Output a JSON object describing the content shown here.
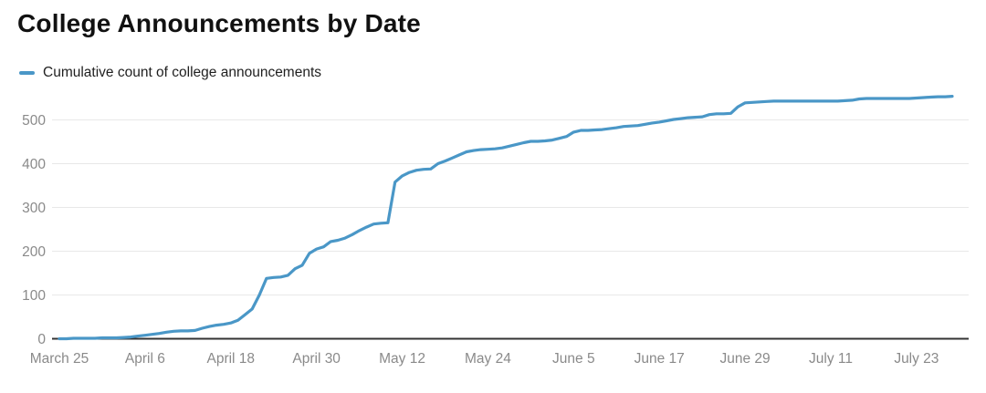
{
  "header": {
    "title": "College Announcements by Date"
  },
  "legend": {
    "items": [
      {
        "label": "Cumulative count of college announcements",
        "swatch": "line-swatch",
        "color": "#4a97c7"
      }
    ]
  },
  "chart_data": {
    "type": "line",
    "title": "College Announcements by Date",
    "legend_position": "top-left",
    "grid": "horizontal-only",
    "x_tick_labels": [
      "March 25",
      "April 6",
      "April 18",
      "April 30",
      "May 12",
      "May 24",
      "June 5",
      "June 17",
      "June 29",
      "July 11",
      "July 23"
    ],
    "x_tick_interval_days": 12,
    "y_ticks": [
      0,
      100,
      200,
      300,
      400,
      500
    ],
    "ylim": [
      0,
      560
    ],
    "series": [
      {
        "name": "Cumulative count of college announcements",
        "color": "#4a97c7",
        "start_label": "March 25",
        "cadence": "daily",
        "values": [
          0,
          0,
          1,
          1,
          1,
          1,
          2,
          2,
          2,
          3,
          4,
          6,
          8,
          10,
          12,
          15,
          17,
          18,
          18,
          19,
          24,
          28,
          31,
          33,
          36,
          42,
          55,
          68,
          100,
          138,
          140,
          141,
          145,
          160,
          168,
          195,
          205,
          210,
          222,
          225,
          230,
          238,
          247,
          255,
          262,
          264,
          265,
          358,
          372,
          380,
          385,
          387,
          388,
          400,
          406,
          413,
          420,
          427,
          430,
          432,
          433,
          434,
          436,
          440,
          444,
          448,
          451,
          451,
          452,
          454,
          458,
          462,
          472,
          476,
          476,
          477,
          478,
          480,
          482,
          485,
          486,
          487,
          490,
          493,
          495,
          498,
          501,
          503,
          505,
          506,
          507,
          512,
          514,
          514,
          515,
          530,
          539,
          540,
          541,
          542,
          543,
          543,
          543,
          543,
          543,
          543,
          543,
          543,
          543,
          543,
          544,
          545,
          548,
          549,
          549,
          549,
          549,
          549,
          549,
          549,
          550,
          551,
          552,
          553,
          553,
          554
        ]
      }
    ],
    "colors": {
      "line": "#4a97c7",
      "grid": "#e8e8e8",
      "axis": "#333333",
      "tick_label": "#8a8a8a",
      "title": "#111111",
      "legend_text": "#1f1f1f"
    }
  }
}
